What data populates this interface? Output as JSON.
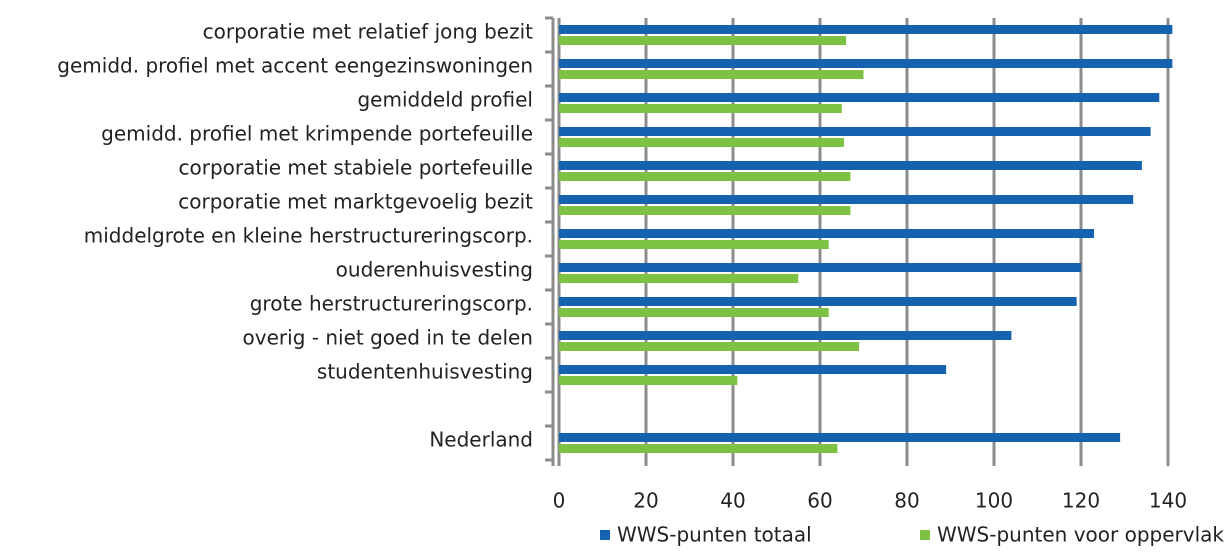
{
  "chart_data": {
    "type": "hbar",
    "categories": [
      "corporatie met relatief jong bezit",
      "gemidd. profiel met accent eengezinswoningen",
      "gemiddeld profiel",
      "gemidd. profiel met krimpende portefeuille",
      "corporatie met stabiele portefeuille",
      "corporatie met marktgevoelig bezit",
      "middelgrote en kleine herstructureringscorp.",
      "ouderenhuisvesting",
      "grote herstructureringscorp.",
      "overig - niet goed in te delen",
      "studentenhuisvesting",
      null,
      "Nederland"
    ],
    "series": [
      {
        "name": "WWS-punten totaal",
        "color": "#1562b0",
        "values": [
          141,
          141,
          138,
          136,
          134,
          132,
          123,
          120,
          119,
          104,
          89,
          null,
          129
        ]
      },
      {
        "name": "WWS-punten voor oppervlak",
        "color": "#7dc242",
        "values": [
          66,
          70,
          65,
          65.5,
          67,
          67,
          62,
          55,
          62,
          69,
          41,
          null,
          64
        ]
      }
    ],
    "xlim": [
      0,
      140
    ],
    "xticks": [
      0,
      20,
      40,
      60,
      80,
      100,
      120,
      140
    ],
    "grid": true,
    "legend": "bottom"
  }
}
